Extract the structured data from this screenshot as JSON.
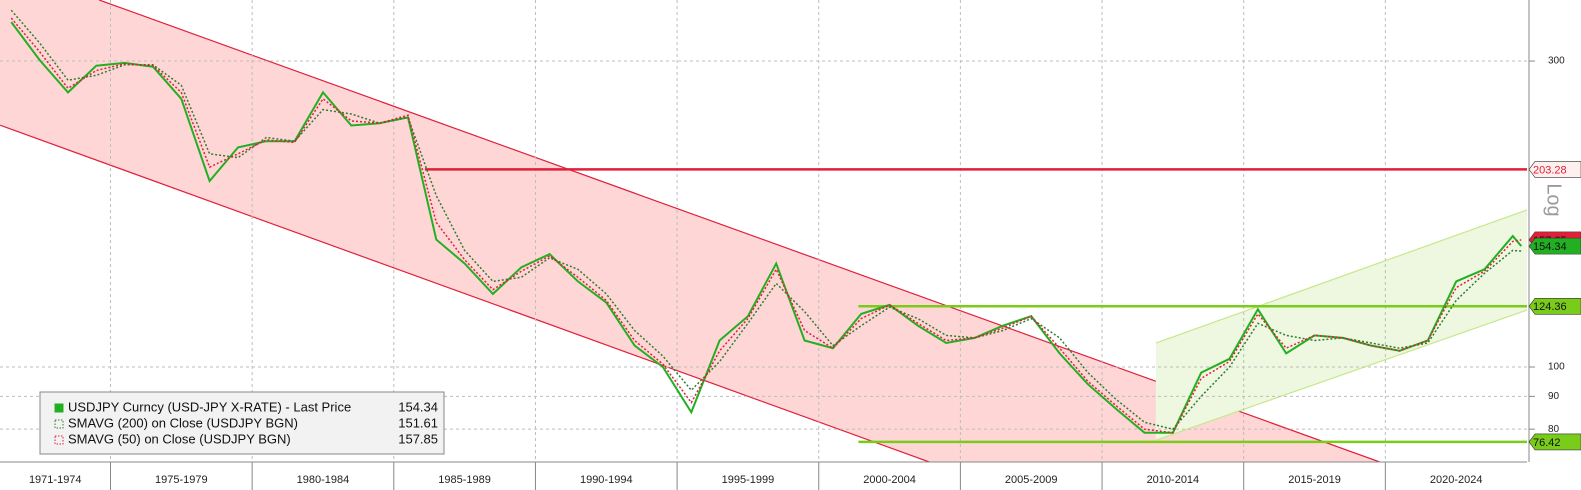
{
  "chart_data": {
    "type": "line",
    "log_scale": true,
    "scale_label": "Log",
    "xlim": [
      1971.1,
      2025.0
    ],
    "ylim": [
      71.1,
      373.5
    ],
    "xticks": [
      1975,
      1980,
      1985,
      1990,
      1995,
      2000,
      2005,
      2010,
      2015,
      2020
    ],
    "x_period_labels": [
      "1971-1974",
      "1975-1979",
      "1980-1984",
      "1985-1989",
      "1990-1994",
      "1995-1999",
      "2000-2004",
      "2005-2009",
      "2010-2014",
      "2015-2019",
      "2020-2024"
    ],
    "yticks": [
      80,
      90,
      100,
      300
    ],
    "grid": true,
    "x": [
      1971.5,
      1972.5,
      1973.5,
      1974.5,
      1975.5,
      1976.5,
      1977.5,
      1978.5,
      1979.5,
      1980.5,
      1981.5,
      1982.5,
      1983.5,
      1984.5,
      1985.5,
      1986.5,
      1987.5,
      1988.5,
      1989.5,
      1990.5,
      1991.5,
      1992.5,
      1993.5,
      1994.5,
      1995.5,
      1996.5,
      1997.5,
      1998.5,
      1999.5,
      2000.5,
      2001.5,
      2002.5,
      2003.5,
      2004.5,
      2005.5,
      2006.5,
      2007.5,
      2008.5,
      2009.5,
      2010.5,
      2011.5,
      2012.5,
      2013.5,
      2014.5,
      2015.5,
      2016.5,
      2017.5,
      2018.5,
      2019.5,
      2020.5,
      2021.5,
      2022.5,
      2023.5,
      2024.5,
      2024.8
    ],
    "series": [
      {
        "name": "USDJPY Curncy (USD-JPY X-RATE) - Last Price",
        "color": "#22b022",
        "values": [
          345,
          301,
          268,
          295,
          298,
          294,
          262,
          195,
          220,
          225,
          225,
          268,
          238,
          240,
          245,
          158,
          145,
          130,
          143,
          150,
          136,
          126,
          108,
          100,
          85,
          110,
          120,
          145,
          110,
          107,
          121,
          125,
          116,
          109,
          111,
          116,
          120,
          105,
          94,
          86,
          79,
          79,
          98,
          103,
          123,
          105,
          112,
          111,
          108,
          106,
          110,
          136,
          142,
          160,
          154.34
        ]
      },
      {
        "name": "SMAVG (200)  on Close (USDJPY BGN)",
        "color": "#2e7d2e",
        "values": [
          360,
          320,
          280,
          285,
          296,
          296,
          275,
          215,
          212,
          228,
          225,
          252,
          248,
          240,
          245,
          185,
          152,
          136,
          138,
          148,
          142,
          130,
          114,
          104,
          92,
          102,
          117,
          135,
          122,
          108,
          116,
          124,
          119,
          112,
          111,
          114,
          119,
          111,
          98,
          89,
          82,
          80,
          90,
          100,
          117,
          112,
          110,
          111,
          109,
          107,
          109,
          127,
          140,
          152,
          151.61
        ]
      },
      {
        "name": "SMAVG (50)  on Close (USDJPY BGN)",
        "color": "#e0203a",
        "values": [
          350,
          310,
          272,
          290,
          297,
          295,
          268,
          205,
          215,
          226,
          224,
          262,
          242,
          240,
          247,
          168,
          147,
          132,
          141,
          149,
          138,
          127,
          110,
          101,
          88,
          106,
          119,
          142,
          114,
          107,
          119,
          125,
          117,
          110,
          111,
          115,
          120,
          107,
          95,
          87,
          80,
          79,
          96,
          102,
          121,
          107,
          112,
          111,
          108,
          106,
          110,
          133,
          141,
          157,
          157.85
        ]
      }
    ],
    "levels": [
      {
        "value": 203.28,
        "color": "#e0203a",
        "from": 1986.1
      },
      {
        "value": 124.36,
        "color": "#7acc1a",
        "from": 2001.4
      },
      {
        "value": 76.42,
        "color": "#7acc1a",
        "from": 2001.4
      }
    ],
    "channels": [
      {
        "color": "#e0203a",
        "fill": "#ffd6d6",
        "upper": [
          [
            1974.6,
            373.5
          ],
          [
            2019.8,
            71.1
          ]
        ],
        "lower": [
          [
            1971.1,
            238.3
          ],
          [
            2003.9,
            71.1
          ]
        ]
      },
      {
        "color": "#c6e88a",
        "fill": "#eef7e0",
        "upper": [
          [
            2011.9,
            109.0
          ],
          [
            2025.0,
            175.8
          ]
        ],
        "lower": [
          [
            2011.9,
            76.9
          ],
          [
            2025.0,
            122.7
          ]
        ]
      }
    ]
  }
}
